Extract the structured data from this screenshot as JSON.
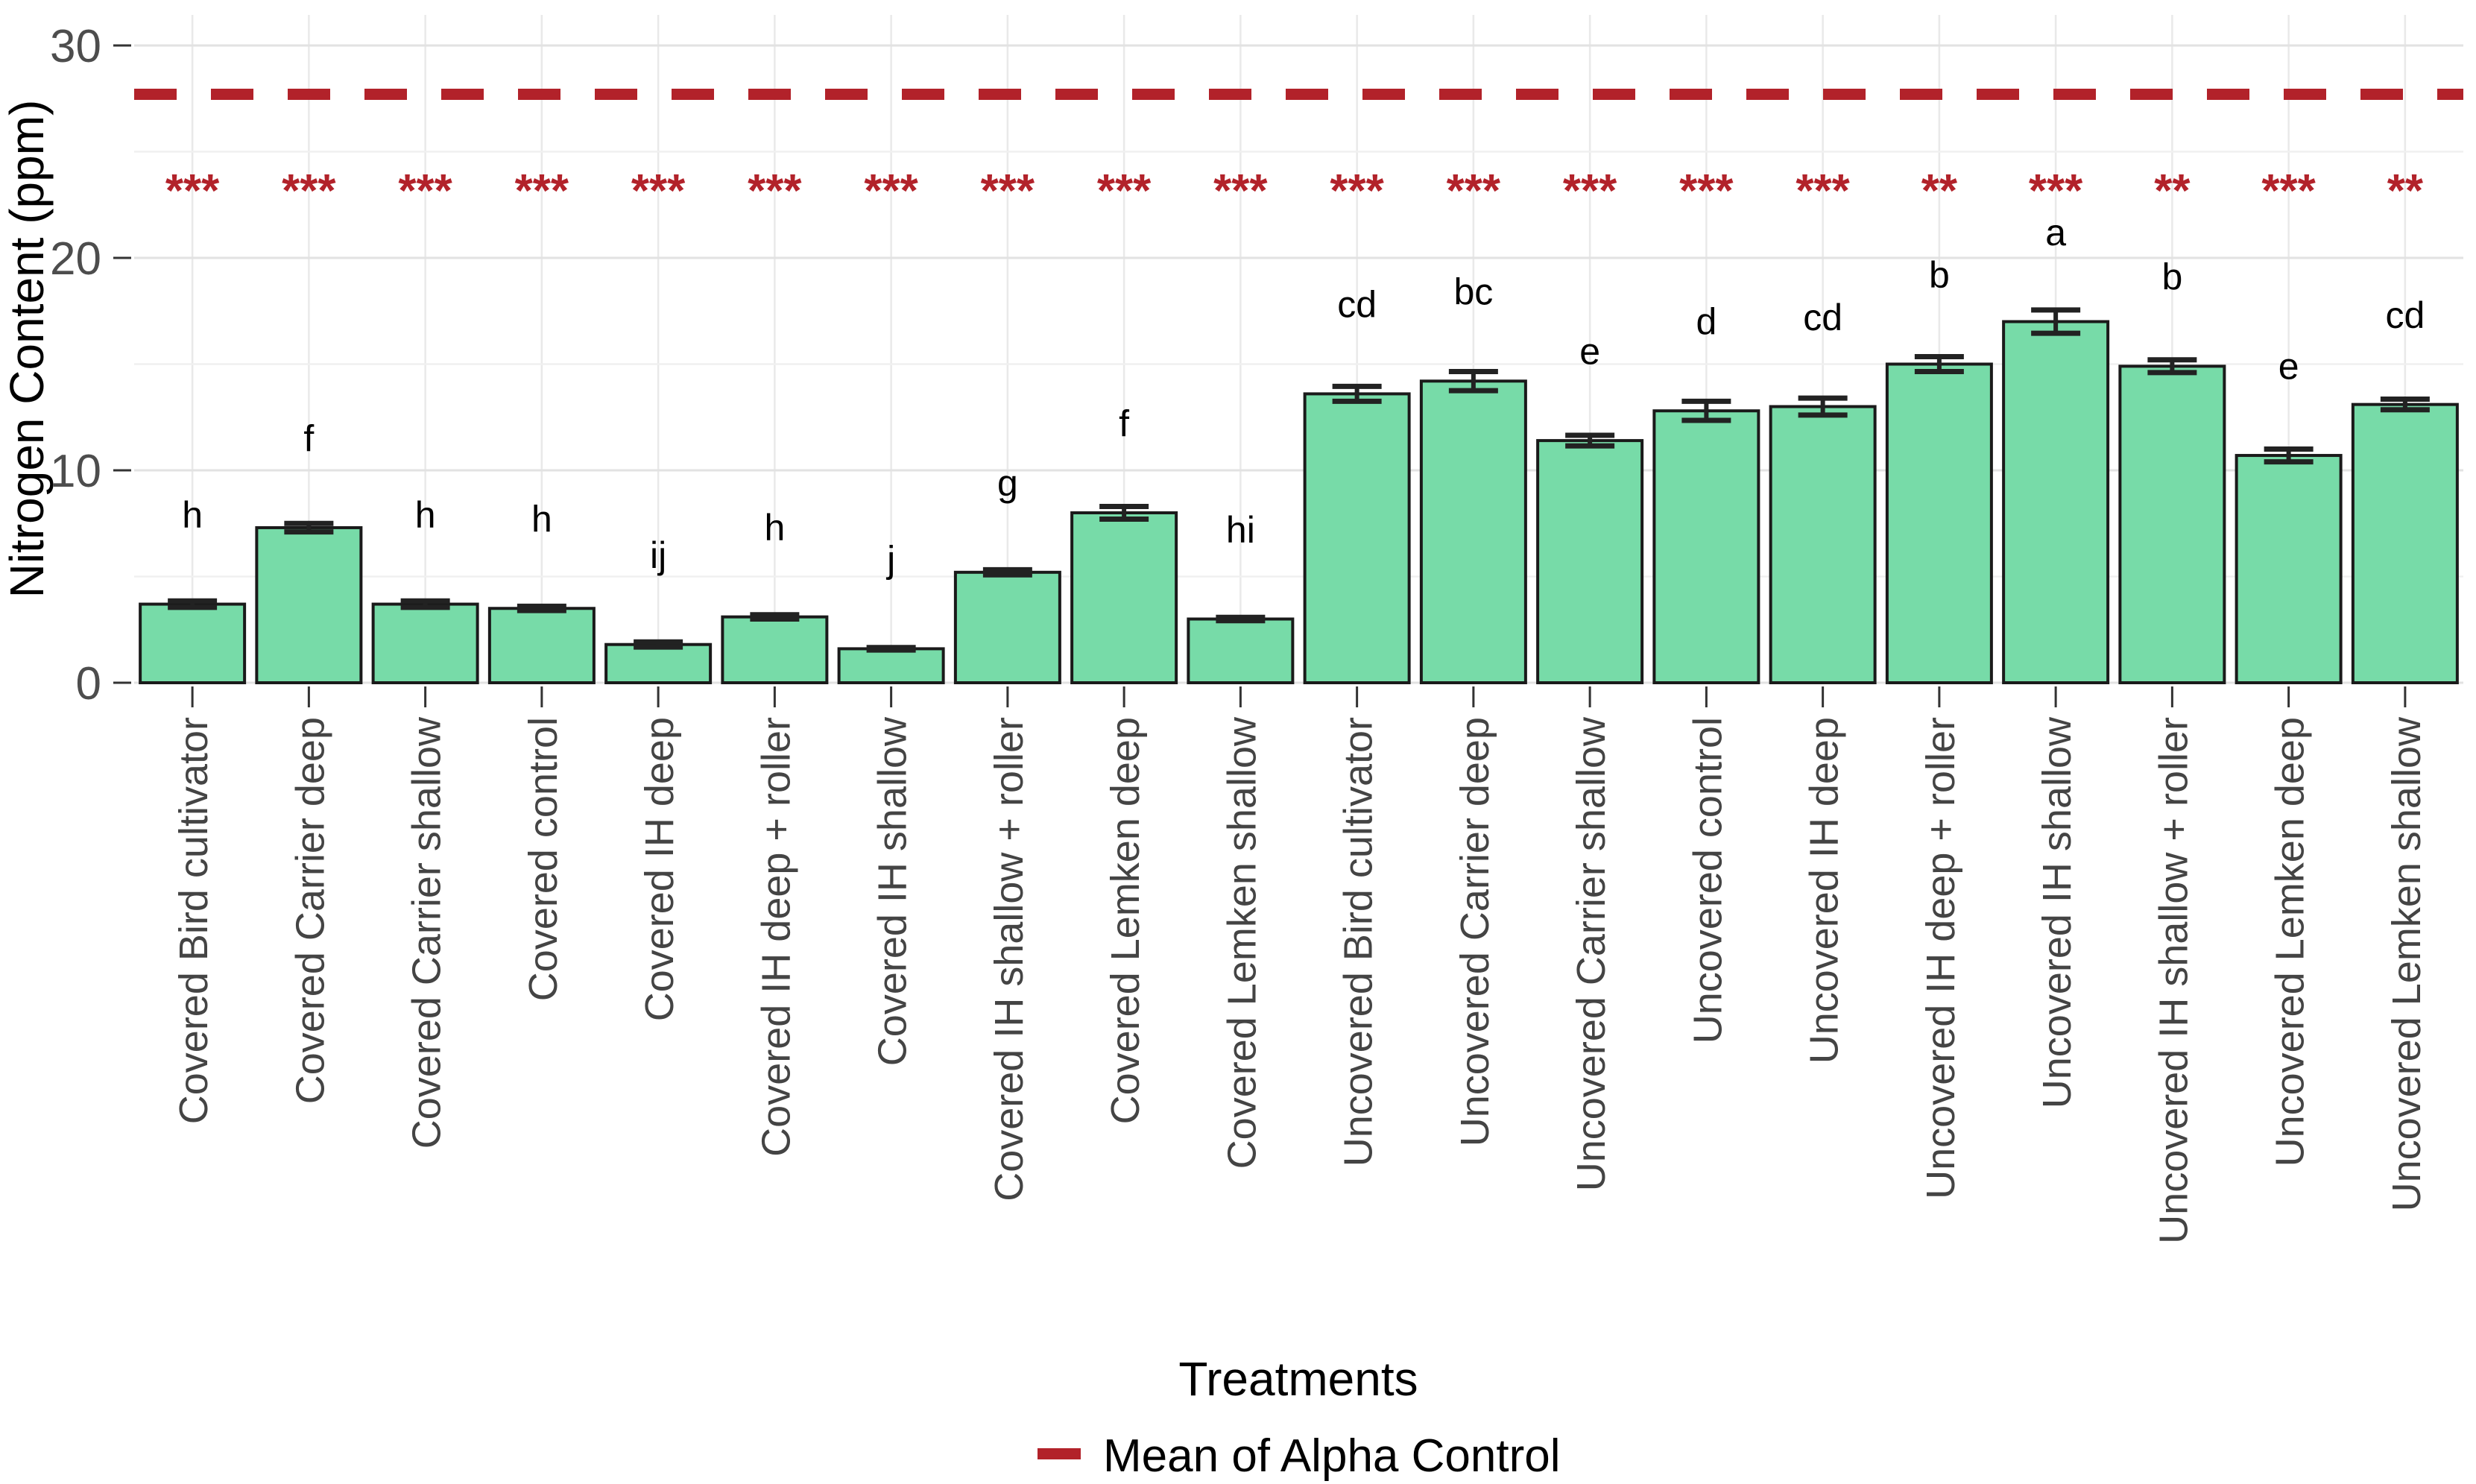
{
  "chart_data": {
    "type": "bar",
    "title": "",
    "xlabel": "Treatments",
    "ylabel": "Nitrogen Content (ppm)",
    "ylim": [
      0,
      30
    ],
    "yticks": [
      0,
      10,
      20,
      30
    ],
    "yticks_minor": [
      5,
      15,
      25
    ],
    "grid": true,
    "legend_position": "bottom",
    "categories": [
      "Covered Bird cultivator",
      "Covered Carrier deep",
      "Covered Carrier shallow",
      "Covered control",
      "Covered IH deep",
      "Covered IH deep + roller",
      "Covered IH shallow",
      "Covered IH shallow + roller",
      "Covered Lemken deep",
      "Covered Lemken shallow",
      "Uncovered Bird cultivator",
      "Uncovered Carrier deep",
      "Uncovered Carrier shallow",
      "Uncovered control",
      "Uncovered IH deep",
      "Uncovered IH deep + roller",
      "Uncovered IH shallow",
      "Uncovered IH shallow + roller",
      "Uncovered Lemken deep",
      "Uncovered Lemken shallow"
    ],
    "values": [
      3.7,
      7.3,
      3.7,
      3.5,
      1.8,
      3.1,
      1.6,
      5.2,
      8.0,
      3.0,
      13.6,
      14.2,
      11.4,
      12.8,
      13.0,
      15.0,
      17.0,
      14.9,
      10.7,
      13.1
    ],
    "errors": [
      0.15,
      0.2,
      0.15,
      0.1,
      0.12,
      0.1,
      0.06,
      0.12,
      0.3,
      0.08,
      0.35,
      0.45,
      0.25,
      0.45,
      0.4,
      0.35,
      0.55,
      0.3,
      0.3,
      0.25
    ],
    "group_letters": [
      "h",
      "f",
      "h",
      "h",
      "ij",
      "h",
      "j",
      "g",
      "f",
      "hi",
      "cd",
      "bc",
      "e",
      "d",
      "cd",
      "b",
      "a",
      "b",
      "e",
      "cd"
    ],
    "significance": [
      "***",
      "***",
      "***",
      "***",
      "***",
      "***",
      "***",
      "***",
      "***",
      "***",
      "***",
      "***",
      "***",
      "***",
      "***",
      "**",
      "***",
      "**",
      "***",
      "**"
    ],
    "bar_color": "#77DBA8",
    "bar_edge_color": "#1a1a1a",
    "error_bar_color": "#222222",
    "significance_color": "#B2222A",
    "letter_color": "#000000",
    "axis_text_color": "#4d4d4d",
    "reference_line": {
      "value": 27.7,
      "style": "dashed",
      "color": "#B2222A",
      "label": "Mean of Alpha Control"
    }
  }
}
